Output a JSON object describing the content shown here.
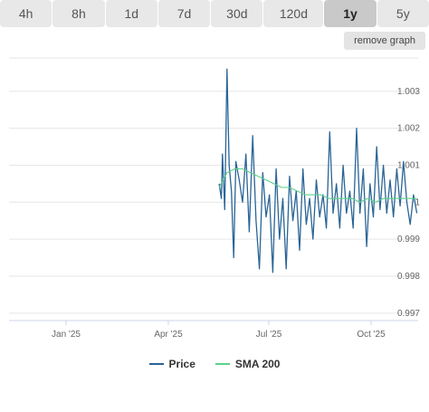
{
  "tabs": [
    {
      "label": "4h",
      "active": false
    },
    {
      "label": "8h",
      "active": false
    },
    {
      "label": "1d",
      "active": false
    },
    {
      "label": "7d",
      "active": false
    },
    {
      "label": "30d",
      "active": false
    },
    {
      "label": "120d",
      "active": false
    },
    {
      "label": "1y",
      "active": true
    },
    {
      "label": "5y",
      "active": false
    }
  ],
  "remove_graph_label": "remove graph",
  "colors": {
    "price": "#2a6496",
    "sma": "#5bd08a",
    "grid": "#e6e6e6"
  },
  "chart_data": {
    "type": "line",
    "x_ticks": [
      "Jan '25",
      "Apr '25",
      "Jul '25",
      "Oct '25"
    ],
    "y_ticks": [
      "1.003",
      "1.002",
      "1.001",
      "1",
      "0.999",
      "0.998",
      "0.997"
    ],
    "ylim": [
      0.9968,
      1.0039
    ],
    "series": [
      {
        "name": "Price",
        "x": [
          "2025-05-18",
          "2025-05-20",
          "2025-05-21",
          "2025-05-23",
          "2025-05-25",
          "2025-05-27",
          "2025-05-29",
          "2025-05-31",
          "2025-06-02",
          "2025-06-05",
          "2025-06-08",
          "2025-06-11",
          "2025-06-14",
          "2025-06-17",
          "2025-06-20",
          "2025-06-23",
          "2025-06-26",
          "2025-06-29",
          "2025-07-02",
          "2025-07-05",
          "2025-07-08",
          "2025-07-11",
          "2025-07-14",
          "2025-07-17",
          "2025-07-20",
          "2025-07-23",
          "2025-07-26",
          "2025-07-29",
          "2025-08-01",
          "2025-08-04",
          "2025-08-07",
          "2025-08-10",
          "2025-08-13",
          "2025-08-16",
          "2025-08-19",
          "2025-08-22",
          "2025-08-25",
          "2025-08-28",
          "2025-08-31",
          "2025-09-03",
          "2025-09-06",
          "2025-09-09",
          "2025-09-12",
          "2025-09-15",
          "2025-09-18",
          "2025-09-21",
          "2025-09-24",
          "2025-09-27",
          "2025-09-30",
          "2025-10-03",
          "2025-10-06",
          "2025-10-09",
          "2025-10-12",
          "2025-10-15",
          "2025-10-18",
          "2025-10-21",
          "2025-10-24",
          "2025-10-27",
          "2025-10-30",
          "2025-11-02",
          "2025-11-05",
          "2025-11-08",
          "2025-11-11"
        ],
        "values": [
          1.0005,
          1.0001,
          1.0013,
          0.9998,
          1.0036,
          1.001,
          1.0003,
          0.9985,
          1.0011,
          1.0006,
          1.0,
          1.0013,
          0.9992,
          1.0018,
          0.9995,
          0.9982,
          1.0008,
          0.9996,
          1.0002,
          0.9981,
          1.0009,
          0.999,
          1.0001,
          0.9982,
          1.0007,
          0.9995,
          1.0003,
          0.9987,
          1.0009,
          0.9994,
          1.0001,
          0.999,
          1.0006,
          0.9996,
          1.0002,
          0.9993,
          1.0019,
          0.9997,
          1.0005,
          0.9993,
          1.001,
          0.9997,
          1.0003,
          0.9993,
          1.002,
          0.9997,
          1.0009,
          0.9988,
          1.0005,
          0.9996,
          1.0015,
          0.9998,
          1.001,
          0.9997,
          1.0006,
          0.9996,
          1.0009,
          0.9999,
          1.0011,
          1.0,
          0.9994,
          1.0002,
          0.9997
        ]
      },
      {
        "name": "SMA 200",
        "x": [
          "2025-05-18",
          "2025-05-25",
          "2025-06-01",
          "2025-06-08",
          "2025-06-15",
          "2025-06-22",
          "2025-06-29",
          "2025-07-06",
          "2025-07-13",
          "2025-07-20",
          "2025-07-27",
          "2025-08-03",
          "2025-08-10",
          "2025-08-17",
          "2025-08-24",
          "2025-08-31",
          "2025-09-07",
          "2025-09-14",
          "2025-09-21",
          "2025-09-28",
          "2025-10-05",
          "2025-10-12",
          "2025-10-19",
          "2025-10-26",
          "2025-11-02",
          "2025-11-11"
        ],
        "values": [
          1.0004,
          1.0008,
          1.0009,
          1.0009,
          1.0008,
          1.0007,
          1.0006,
          1.0005,
          1.0004,
          1.0004,
          1.0003,
          1.0002,
          1.0002,
          1.0002,
          1.0001,
          1.0001,
          1.0001,
          1.0001,
          1.0,
          1.0001,
          1.0,
          1.0001,
          1.0001,
          1.0001,
          1.0001,
          1.0001
        ]
      }
    ],
    "grid": true,
    "legend_position": "bottom-center"
  }
}
